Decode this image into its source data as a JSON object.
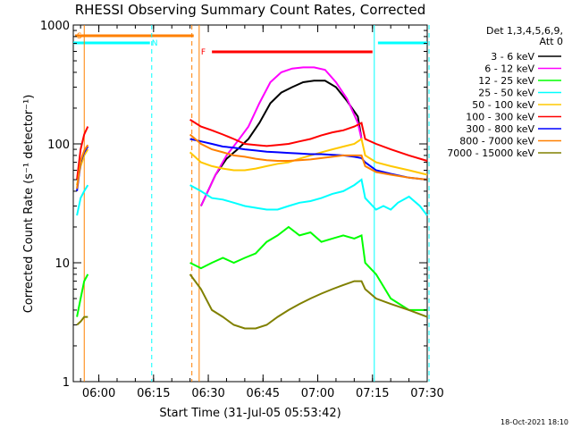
{
  "chart_data": {
    "type": "line",
    "title": "RHESSI Observing Summary Count Rates, Corrected",
    "xlabel": "Start Time (31-Jul-05 05:53:42)",
    "ylabel": "Corrected Count Rate (s⁻¹ detector⁻¹)",
    "yscale": "log",
    "ylim": [
      1,
      1000
    ],
    "xlim_minutes": [
      -7,
      90
    ],
    "x_unit": "minutes after 06:00 UT",
    "x_ticks": [
      {
        "v": 0,
        "label": "06:00"
      },
      {
        "v": 15,
        "label": "06:15"
      },
      {
        "v": 30,
        "label": "06:30"
      },
      {
        "v": 45,
        "label": "06:45"
      },
      {
        "v": 60,
        "label": "07:00"
      },
      {
        "v": 75,
        "label": "07:15"
      },
      {
        "v": 90,
        "label": "07:30"
      }
    ],
    "y_ticks": [
      {
        "v": 1,
        "label": "1"
      },
      {
        "v": 10,
        "label": "10"
      },
      {
        "v": 100,
        "label": "100"
      },
      {
        "v": 1000,
        "label": "1000"
      }
    ],
    "legend_header": [
      "Det 1,3,4,5,6,9,",
      "Att 0"
    ],
    "legend_position": "right",
    "timestamp": "18-Oct-2021 18:10",
    "series": [
      {
        "name": "3 - 6 keV",
        "color": "#000000",
        "points": [
          [
            28,
            30
          ],
          [
            32,
            55
          ],
          [
            35,
            75
          ],
          [
            38,
            90
          ],
          [
            41,
            110
          ],
          [
            44,
            150
          ],
          [
            47,
            220
          ],
          [
            50,
            270
          ],
          [
            53,
            300
          ],
          [
            56,
            330
          ],
          [
            59,
            340
          ],
          [
            62,
            340
          ],
          [
            65,
            300
          ],
          [
            68,
            230
          ],
          [
            71,
            170
          ],
          [
            72,
            110
          ]
        ]
      },
      {
        "name": "6 - 12 keV",
        "color": "#ff00ff",
        "points": [
          [
            28,
            30
          ],
          [
            32,
            55
          ],
          [
            35,
            80
          ],
          [
            38,
            105
          ],
          [
            41,
            140
          ],
          [
            44,
            220
          ],
          [
            47,
            330
          ],
          [
            50,
            400
          ],
          [
            53,
            430
          ],
          [
            56,
            440
          ],
          [
            59,
            440
          ],
          [
            62,
            420
          ],
          [
            65,
            330
          ],
          [
            68,
            240
          ],
          [
            71,
            150
          ],
          [
            72,
            110
          ]
        ]
      },
      {
        "name": "12 - 25 keV",
        "color": "#00ff00",
        "points": [
          [
            -6,
            3.5
          ],
          [
            -5,
            5
          ],
          [
            -4,
            7
          ],
          [
            -3,
            8
          ],
          [
            25,
            10
          ],
          [
            28,
            9
          ],
          [
            31,
            10
          ],
          [
            34,
            11
          ],
          [
            37,
            10
          ],
          [
            40,
            11
          ],
          [
            43,
            12
          ],
          [
            46,
            15
          ],
          [
            49,
            17
          ],
          [
            52,
            20
          ],
          [
            55,
            17
          ],
          [
            58,
            18
          ],
          [
            61,
            15
          ],
          [
            64,
            16
          ],
          [
            67,
            17
          ],
          [
            70,
            16
          ],
          [
            72,
            17
          ],
          [
            73,
            10
          ],
          [
            76,
            8
          ],
          [
            80,
            5
          ],
          [
            85,
            4
          ],
          [
            90,
            4
          ]
        ]
      },
      {
        "name": "25 - 50 keV",
        "color": "#00ffff",
        "points": [
          [
            -6,
            25
          ],
          [
            -5,
            35
          ],
          [
            -4,
            40
          ],
          [
            -3,
            45
          ],
          [
            25,
            45
          ],
          [
            28,
            40
          ],
          [
            31,
            35
          ],
          [
            34,
            34
          ],
          [
            37,
            32
          ],
          [
            40,
            30
          ],
          [
            43,
            29
          ],
          [
            46,
            28
          ],
          [
            49,
            28
          ],
          [
            52,
            30
          ],
          [
            55,
            32
          ],
          [
            58,
            33
          ],
          [
            61,
            35
          ],
          [
            64,
            38
          ],
          [
            67,
            40
          ],
          [
            70,
            45
          ],
          [
            72,
            50
          ],
          [
            73,
            35
          ],
          [
            76,
            28
          ],
          [
            78,
            30
          ],
          [
            80,
            28
          ],
          [
            82,
            32
          ],
          [
            85,
            36
          ],
          [
            88,
            30
          ],
          [
            90,
            25
          ]
        ]
      },
      {
        "name": "50 - 100 keV",
        "color": "#ffc800",
        "points": [
          [
            -6,
            45
          ],
          [
            -5,
            65
          ],
          [
            -4,
            80
          ],
          [
            -3,
            90
          ],
          [
            25,
            85
          ],
          [
            28,
            70
          ],
          [
            31,
            65
          ],
          [
            34,
            62
          ],
          [
            37,
            60
          ],
          [
            40,
            60
          ],
          [
            43,
            62
          ],
          [
            46,
            65
          ],
          [
            49,
            68
          ],
          [
            52,
            70
          ],
          [
            55,
            75
          ],
          [
            58,
            80
          ],
          [
            61,
            85
          ],
          [
            64,
            90
          ],
          [
            67,
            95
          ],
          [
            70,
            100
          ],
          [
            72,
            110
          ],
          [
            73,
            80
          ],
          [
            76,
            70
          ],
          [
            80,
            65
          ],
          [
            85,
            60
          ],
          [
            90,
            55
          ]
        ]
      },
      {
        "name": "100 - 300 keV",
        "color": "#ff0000",
        "points": [
          [
            -6,
            50
          ],
          [
            -5,
            90
          ],
          [
            -4,
            120
          ],
          [
            -3,
            140
          ],
          [
            25,
            160
          ],
          [
            28,
            140
          ],
          [
            31,
            130
          ],
          [
            34,
            120
          ],
          [
            37,
            110
          ],
          [
            40,
            100
          ],
          [
            43,
            98
          ],
          [
            46,
            96
          ],
          [
            49,
            98
          ],
          [
            52,
            100
          ],
          [
            55,
            105
          ],
          [
            58,
            110
          ],
          [
            61,
            118
          ],
          [
            64,
            125
          ],
          [
            67,
            130
          ],
          [
            70,
            140
          ],
          [
            72,
            150
          ],
          [
            73,
            110
          ],
          [
            76,
            100
          ],
          [
            80,
            90
          ],
          [
            85,
            80
          ],
          [
            90,
            72
          ]
        ]
      },
      {
        "name": "300 - 800 keV",
        "color": "#0000ff",
        "points": [
          [
            -6,
            40
          ],
          [
            -5,
            70
          ],
          [
            -4,
            85
          ],
          [
            -3,
            95
          ],
          [
            25,
            110
          ],
          [
            28,
            105
          ],
          [
            31,
            100
          ],
          [
            34,
            95
          ],
          [
            37,
            93
          ],
          [
            40,
            90
          ],
          [
            43,
            88
          ],
          [
            46,
            86
          ],
          [
            49,
            85
          ],
          [
            52,
            84
          ],
          [
            55,
            83
          ],
          [
            58,
            82
          ],
          [
            61,
            82
          ],
          [
            64,
            81
          ],
          [
            67,
            80
          ],
          [
            70,
            78
          ],
          [
            72,
            76
          ],
          [
            73,
            70
          ],
          [
            76,
            60
          ],
          [
            80,
            56
          ],
          [
            85,
            52
          ],
          [
            90,
            50
          ]
        ]
      },
      {
        "name": "800 - 7000 keV",
        "color": "#ff8000",
        "points": [
          [
            -6,
            42
          ],
          [
            -5,
            72
          ],
          [
            -4,
            88
          ],
          [
            -3,
            98
          ],
          [
            25,
            120
          ],
          [
            28,
            100
          ],
          [
            31,
            90
          ],
          [
            34,
            85
          ],
          [
            37,
            80
          ],
          [
            40,
            78
          ],
          [
            43,
            75
          ],
          [
            46,
            73
          ],
          [
            49,
            72
          ],
          [
            52,
            72
          ],
          [
            55,
            73
          ],
          [
            58,
            74
          ],
          [
            61,
            76
          ],
          [
            64,
            78
          ],
          [
            67,
            80
          ],
          [
            70,
            80
          ],
          [
            72,
            80
          ],
          [
            73,
            65
          ],
          [
            76,
            58
          ],
          [
            80,
            55
          ],
          [
            85,
            52
          ],
          [
            90,
            50
          ]
        ]
      },
      {
        "name": "7000 - 15000 keV",
        "color": "#808000",
        "points": [
          [
            -6,
            3
          ],
          [
            -5,
            3.2
          ],
          [
            -4,
            3.5
          ],
          [
            -3,
            3.5
          ],
          [
            25,
            8
          ],
          [
            28,
            6
          ],
          [
            31,
            4
          ],
          [
            34,
            3.5
          ],
          [
            37,
            3
          ],
          [
            40,
            2.8
          ],
          [
            43,
            2.8
          ],
          [
            46,
            3
          ],
          [
            49,
            3.5
          ],
          [
            52,
            4
          ],
          [
            55,
            4.5
          ],
          [
            58,
            5
          ],
          [
            61,
            5.5
          ],
          [
            64,
            6
          ],
          [
            67,
            6.5
          ],
          [
            70,
            7
          ],
          [
            72,
            7
          ],
          [
            73,
            6
          ],
          [
            76,
            5
          ],
          [
            80,
            4.5
          ],
          [
            85,
            4
          ],
          [
            90,
            3.5
          ]
        ]
      }
    ],
    "flag_bars": [
      {
        "label": "S",
        "color": "#ff8000",
        "x0": -6.5,
        "x1": 26
      },
      {
        "label": "N",
        "color": "#00ffff",
        "x0": -7,
        "x1": 14,
        "label_at": 14.5
      },
      {
        "label": "",
        "color": "#00ffff",
        "x0": 76.5,
        "x1": 90
      },
      {
        "label": "F",
        "color": "#ff0000",
        "x0": 31,
        "x1": 75,
        "label_at": 28
      }
    ],
    "vlines": [
      {
        "x": -4,
        "color": "#ff8000",
        "style": "solid"
      },
      {
        "x": 14.5,
        "color": "#00ffff",
        "style": "dashed"
      },
      {
        "x": 25.5,
        "color": "#ff8000",
        "style": "dashed"
      },
      {
        "x": 27.5,
        "color": "#ff8000",
        "style": "solid"
      },
      {
        "x": 75.5,
        "color": "#00ffff",
        "style": "solid"
      },
      {
        "x": 90.5,
        "color": "#00ffff",
        "style": "dashed"
      }
    ]
  }
}
